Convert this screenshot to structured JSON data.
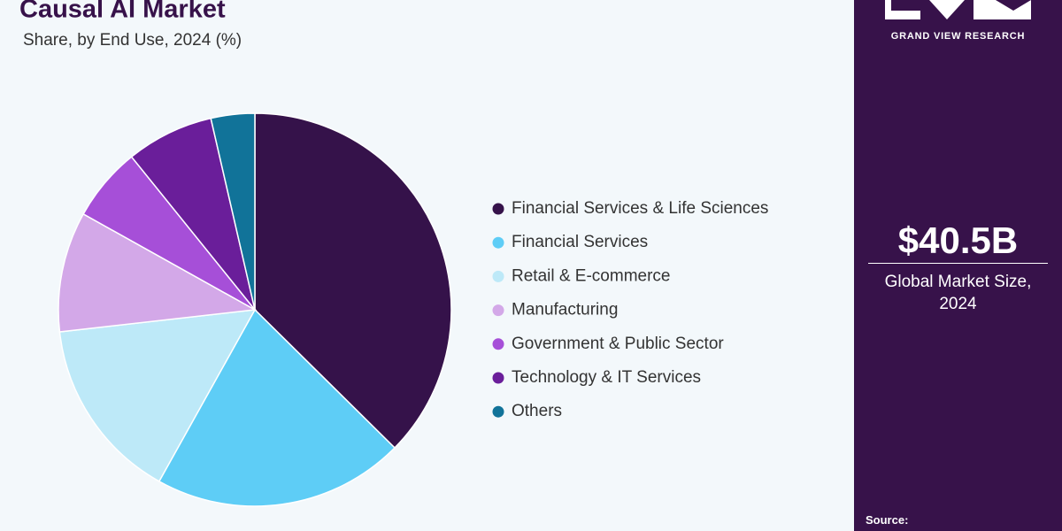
{
  "chart_data": {
    "type": "pie",
    "title": "Causal AI Market",
    "subtitle": "Share, by End Use, 2024 (%)",
    "categories": [
      "Financial Services & Life Sciences",
      "Financial Services",
      "Retail & E-commerce",
      "Manufacturing",
      "Government & Public Sector",
      "Technology & IT Services",
      "Others"
    ],
    "values": [
      37.4,
      20.7,
      15.1,
      9.9,
      6.1,
      7.2,
      3.6
    ],
    "colors": [
      "#35124a",
      "#5ecdf6",
      "#bde9f8",
      "#d3a8e8",
      "#a64fd8",
      "#6a1e9a",
      "#117399"
    ]
  },
  "panel": {
    "brand": "GRAND VIEW RESEARCH",
    "market_size": "$40.5B",
    "market_size_label": "Global Market Size, 2024",
    "source_label": "Source:"
  }
}
